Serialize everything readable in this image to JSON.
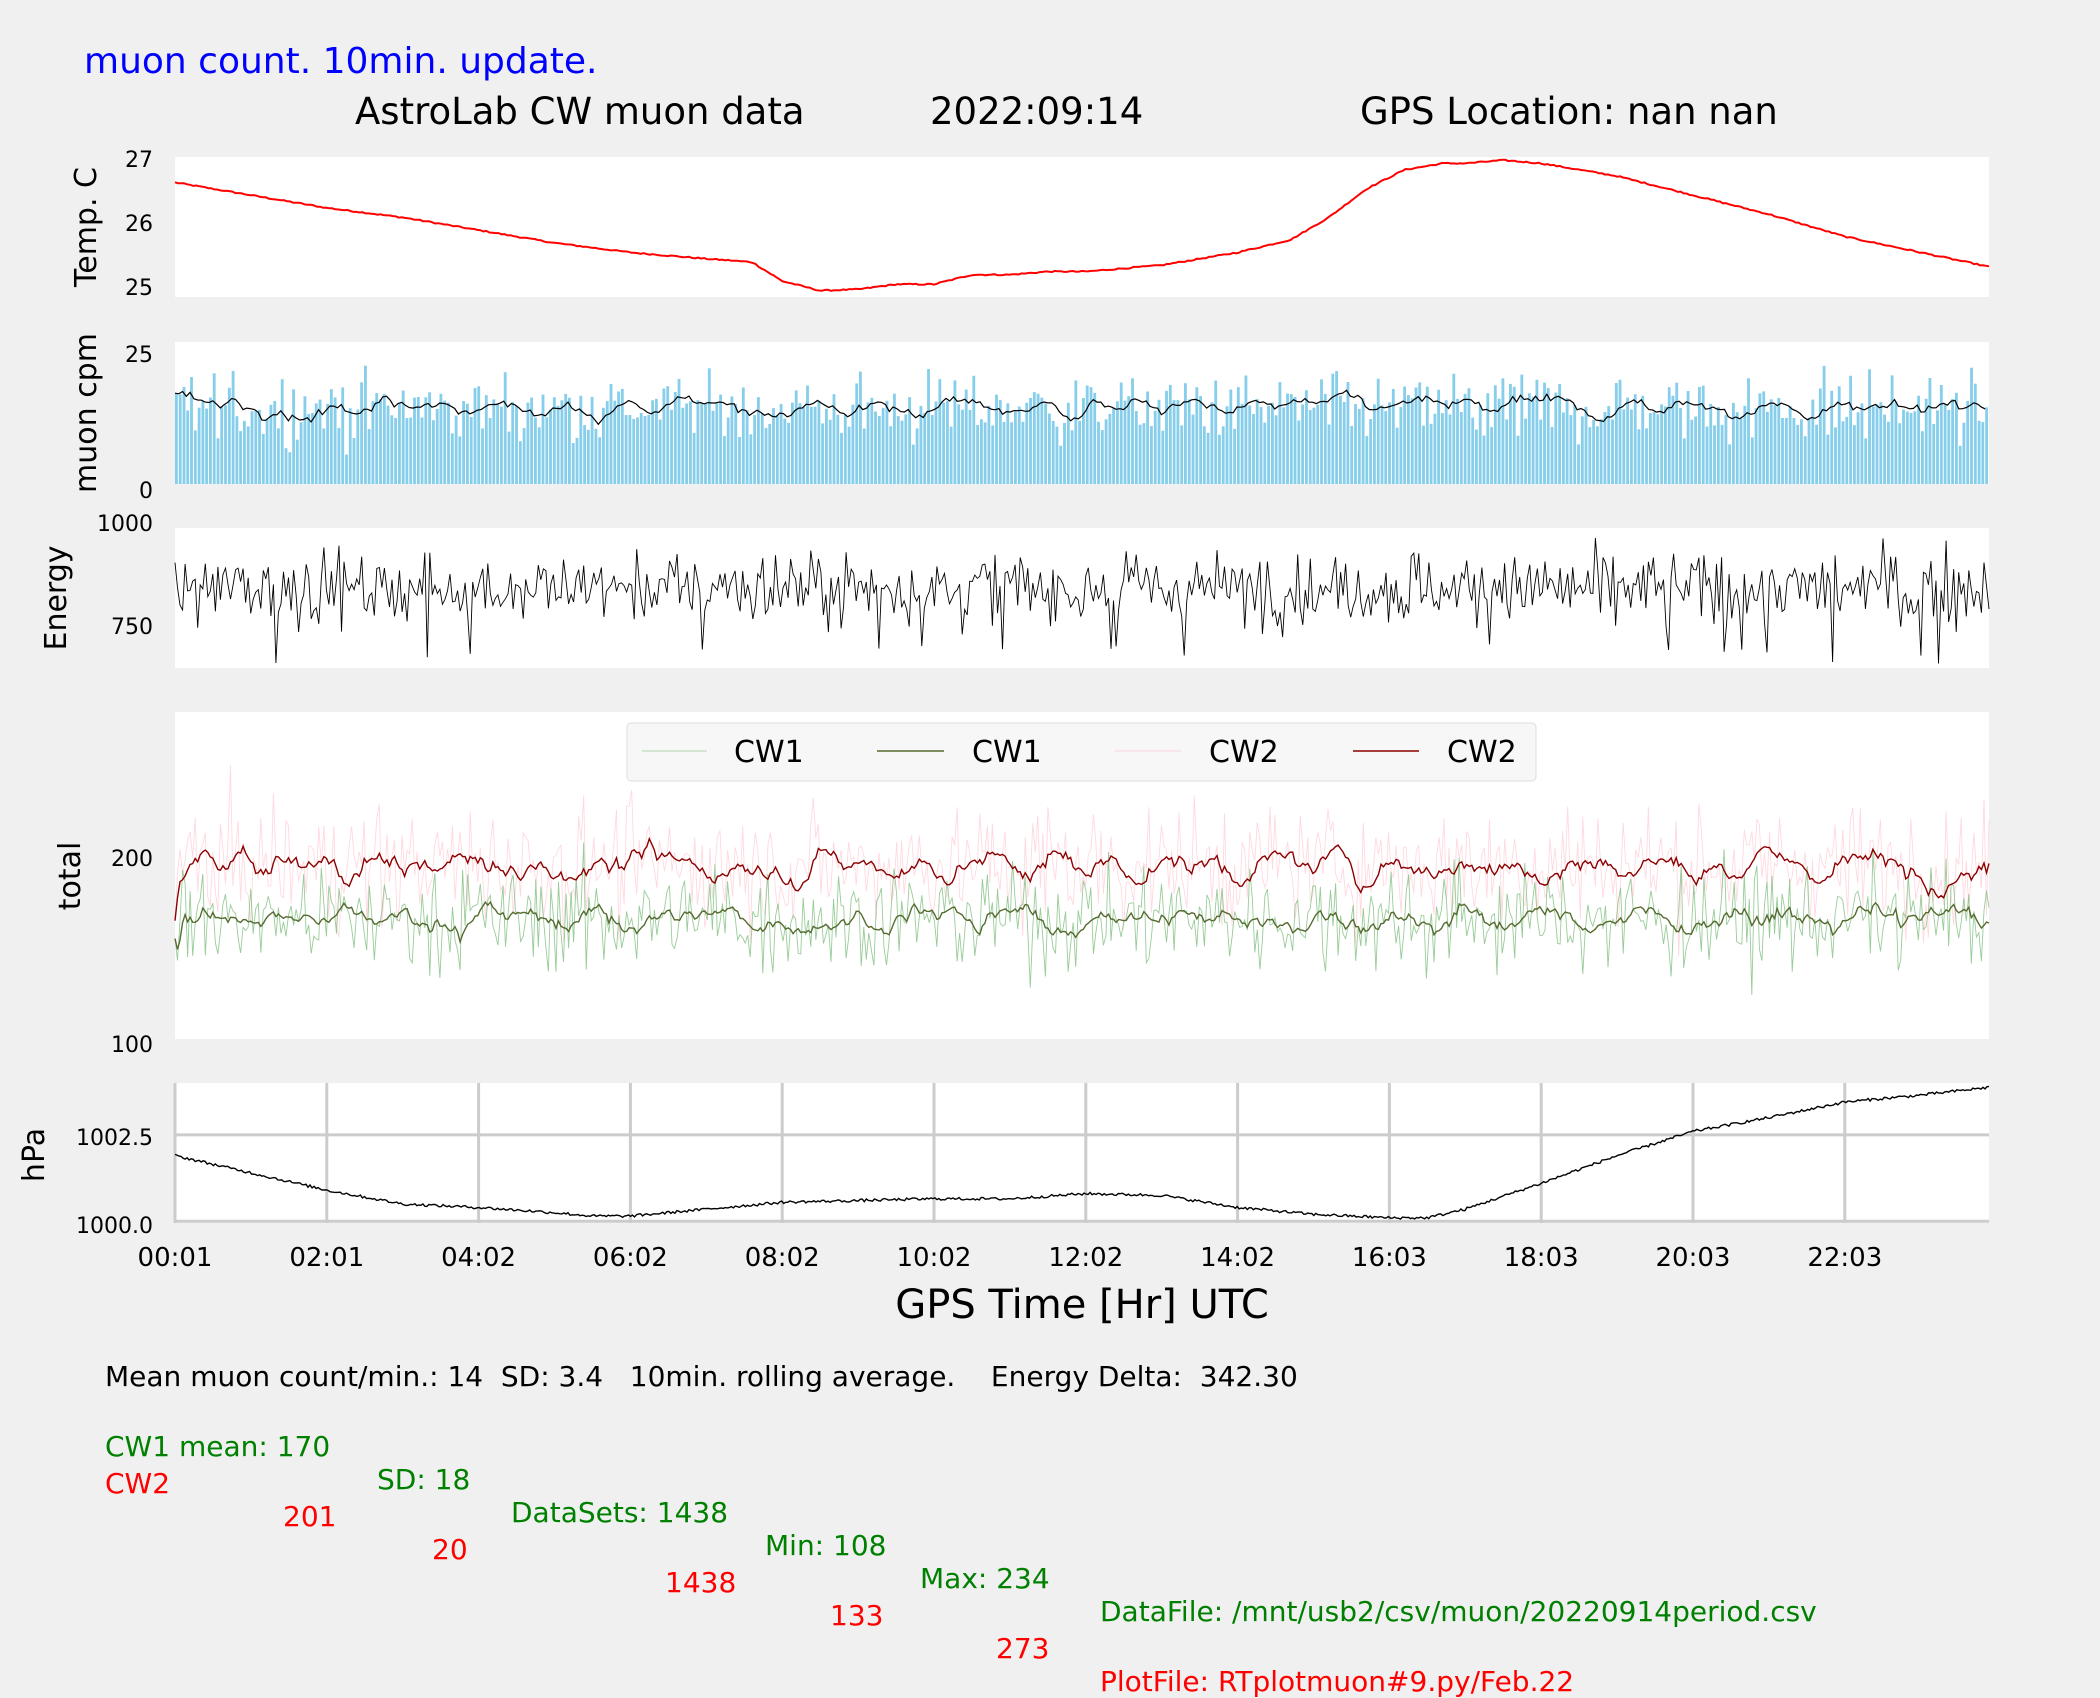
{
  "header": {
    "update_note": "muon count.  10min. update.",
    "title": "AstroLab CW muon data",
    "date": "2022:09:14",
    "gps_location": "GPS Location: nan   nan"
  },
  "colors": {
    "temp": "#ff0000",
    "muon_bars": "#87ceeb",
    "muon_avg": "#000000",
    "energy": "#000000",
    "cw1_raw": "#7fbf7f",
    "cw1_avg": "#556b2f",
    "cw2_raw": "#ffc0cb",
    "cw2_avg": "#8b0000",
    "pressure": "#000000",
    "note_blue": "#0000ff",
    "green_text": "#008000",
    "red_text": "#ff0000"
  },
  "chart_data": [
    {
      "type": "line",
      "ylabel": "Temp. C",
      "yticks": [
        "25",
        "26",
        "27"
      ],
      "ylim": [
        24.85,
        27.05
      ],
      "x_hours": [
        0,
        1,
        2,
        3,
        4,
        5,
        6,
        7,
        7.6,
        8,
        8.5,
        9,
        9.5,
        10,
        10.5,
        11,
        11.5,
        12,
        13,
        14,
        14.7,
        15.2,
        15.7,
        16.2,
        16.7,
        17,
        17.5,
        18,
        19,
        20,
        21,
        22,
        23,
        24
      ],
      "temp_c": [
        26.65,
        26.45,
        26.25,
        26.1,
        25.9,
        25.7,
        25.55,
        25.45,
        25.4,
        25.1,
        24.95,
        24.97,
        25.05,
        25.05,
        25.2,
        25.2,
        25.25,
        25.25,
        25.35,
        25.55,
        25.75,
        26.1,
        26.55,
        26.85,
        26.95,
        26.95,
        27.0,
        26.95,
        26.75,
        26.45,
        26.15,
        25.8,
        25.55,
        25.3
      ]
    },
    {
      "type": "bar",
      "ylabel": "muon cpm",
      "yticks": [
        "0",
        "25"
      ],
      "ylim": [
        0,
        26
      ],
      "mean": 14,
      "sd": 3.4,
      "rolling_average": "10min."
    },
    {
      "type": "line",
      "ylabel": "Energy",
      "yticks": [
        "750",
        "1000"
      ],
      "ylim": [
        660,
        1010
      ],
      "typical_range": [
        760,
        960
      ]
    },
    {
      "type": "line",
      "ylabel": "total",
      "yticks": [
        "100",
        "200"
      ],
      "ylim": [
        100,
        290
      ],
      "legend": [
        "CW1",
        "CW1",
        "CW2",
        "CW2"
      ],
      "legend_position": "top-center",
      "series": [
        {
          "name": "CW1",
          "mean": 170,
          "sd": 18,
          "min": 108,
          "max": 234
        },
        {
          "name": "CW2",
          "mean": 201,
          "sd": 20,
          "min": 133,
          "max": 273
        }
      ]
    },
    {
      "type": "line",
      "ylabel": "hPa",
      "yticks": [
        "1000.0",
        "1002.5"
      ],
      "ylim": [
        999.95,
        1004.0
      ],
      "grid": true,
      "x_hours": [
        0,
        1,
        2,
        3,
        4,
        5,
        5.5,
        6,
        7,
        8,
        9,
        10,
        11,
        12,
        13,
        14,
        15,
        16,
        16.5,
        17,
        18,
        19,
        20,
        21,
        22,
        23,
        24
      ],
      "pressure_hpa": [
        1001.9,
        1001.4,
        1000.9,
        1000.5,
        1000.4,
        1000.25,
        1000.15,
        1000.15,
        1000.35,
        1000.55,
        1000.6,
        1000.65,
        1000.65,
        1000.8,
        1000.75,
        1000.4,
        1000.2,
        1000.1,
        1000.1,
        1000.35,
        1001.1,
        1001.9,
        1002.6,
        1003.0,
        1003.45,
        1003.65,
        1003.9
      ]
    }
  ],
  "x_axis": {
    "label": "GPS Time  [Hr] UTC",
    "ticks": [
      "00:01",
      "02:01",
      "04:02",
      "06:02",
      "08:02",
      "10:02",
      "12:02",
      "14:02",
      "16:03",
      "18:03",
      "20:03",
      "22:03"
    ],
    "tick_hours": [
      0,
      2,
      4,
      6,
      8,
      10,
      12,
      14,
      16,
      18,
      20,
      22
    ],
    "range_hours": [
      0,
      23.9
    ]
  },
  "footer": {
    "summary": "Mean muon count/min.: 14  SD: 3.4   10min. rolling average.    Energy Delta:  342.30",
    "cw1": {
      "mean": "CW1 mean: 170",
      "sd": "SD: 18",
      "datasets": "DataSets: 1438",
      "min": "Min: 108",
      "max": "Max: 234",
      "file": "DataFile: /mnt/usb2/csv/muon/20220914period.csv"
    },
    "cw2": {
      "label": "CW2",
      "mean": "201",
      "sd": "20",
      "datasets": "1438",
      "min": "133",
      "max": "273",
      "file": "PlotFile: RTplotmuon#9.py/Feb.22"
    }
  }
}
